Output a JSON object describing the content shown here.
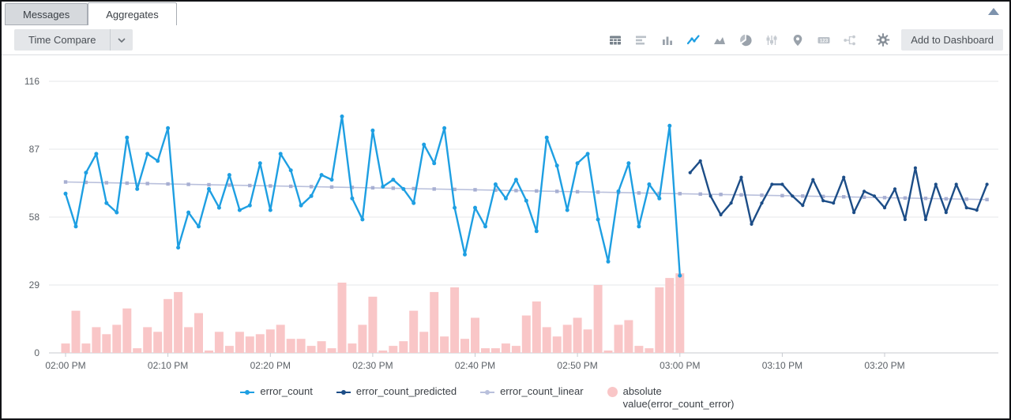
{
  "tabs": {
    "messages": "Messages",
    "aggregates": "Aggregates"
  },
  "toolbar": {
    "time_compare": "Time Compare",
    "add_to_dashboard": "Add to Dashboard",
    "icons": [
      "table",
      "bar-horizontal",
      "column",
      "line",
      "area",
      "pie",
      "sliders",
      "map-pin",
      "numeric",
      "branch",
      "settings-gear"
    ],
    "selected_chart_type": "line"
  },
  "colors": {
    "error_count": "#1e9fe2",
    "error_count_predicted": "#1c4d87",
    "error_count_linear": "#b9c0dc",
    "error_bar": "#f9c6c7",
    "axis_text": "#5c6167",
    "selected_icon": "#1e9fe2"
  },
  "chart_data": {
    "type": "line",
    "title": "",
    "xlabel": "",
    "ylabel": "",
    "grid": "horizontal",
    "legend_position": "bottom",
    "y_ticks": [
      0,
      29,
      58,
      87,
      116
    ],
    "ylim": [
      0,
      133
    ],
    "x_ticks": [
      {
        "minute": 0,
        "label": "02:00 PM"
      },
      {
        "minute": 10,
        "label": "02:10 PM"
      },
      {
        "minute": 20,
        "label": "02:20 PM"
      },
      {
        "minute": 30,
        "label": "02:30 PM"
      },
      {
        "minute": 40,
        "label": "02:40 PM"
      },
      {
        "minute": 50,
        "label": "02:50 PM"
      },
      {
        "minute": 60,
        "label": "03:00 PM"
      },
      {
        "minute": 70,
        "label": "03:10 PM"
      },
      {
        "minute": 80,
        "label": "03:20 PM"
      }
    ],
    "series": [
      {
        "name": "error_count",
        "type": "line",
        "color": "#1e9fe2",
        "marker_radius": 2.5,
        "start_minute": 0,
        "minute_step": 1,
        "values": [
          68,
          54,
          77,
          85,
          64,
          60,
          92,
          70,
          85,
          82,
          96,
          45,
          60,
          54,
          70,
          62,
          76,
          61,
          63,
          81,
          61,
          85,
          78,
          63,
          67,
          76,
          74,
          101,
          66,
          57,
          95,
          71,
          74,
          70,
          64,
          89,
          81,
          96,
          62,
          42,
          62,
          54,
          72,
          66,
          74,
          65,
          52,
          92,
          80,
          61,
          81,
          85,
          57,
          39,
          69,
          81,
          54,
          72,
          66,
          97,
          33
        ]
      },
      {
        "name": "error_count_predicted",
        "type": "line",
        "color": "#1c4d87",
        "marker_radius": 2.1,
        "start_minute": 61,
        "minute_step": 1,
        "values": [
          77,
          82,
          67,
          59,
          64,
          75,
          55,
          64,
          72,
          72,
          67,
          63,
          74,
          65,
          64,
          75,
          60,
          69,
          67,
          62,
          70,
          57,
          79,
          57,
          72,
          60,
          72,
          62,
          61,
          72
        ]
      },
      {
        "name": "error_count_linear",
        "type": "trend",
        "color": "#b9c0dc",
        "marker_color": "#a7afd2",
        "marker_every_minutes": 2,
        "start_minute": 0,
        "end_minute": 90,
        "start_value": 73,
        "end_value": 65.5
      },
      {
        "name": "absolute value(error_count_error)",
        "type": "bar",
        "color": "#f9c6c7",
        "start_minute": 0,
        "minute_step": 1,
        "values": [
          4,
          18,
          4,
          11,
          8,
          12,
          19,
          2,
          11,
          9,
          23,
          26,
          11,
          17,
          1,
          9,
          3,
          9,
          7,
          8,
          10,
          12,
          6,
          6,
          3,
          5,
          2,
          30,
          4,
          12,
          24,
          1,
          3,
          5,
          18,
          9,
          26,
          7,
          28,
          6,
          15,
          2,
          2,
          4,
          3,
          16,
          22,
          11,
          7,
          12,
          15,
          10,
          29,
          1,
          12,
          14,
          3,
          2,
          28,
          32,
          34
        ]
      }
    ]
  }
}
